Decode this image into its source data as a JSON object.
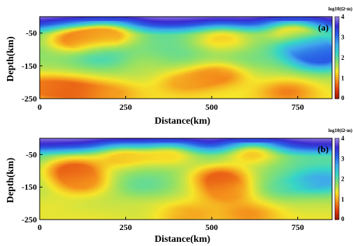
{
  "chart_data": [
    {
      "type": "heatmap",
      "panel_label": "(a)",
      "xlabel": "Distance(km)",
      "ylabel": "Depth(km)",
      "xlim": [
        0,
        850
      ],
      "ylim": [
        -250,
        0
      ],
      "x_ticks": [
        "0",
        "250",
        "500",
        "750"
      ],
      "x_tick_values": [
        0,
        250,
        500,
        750
      ],
      "y_ticks": [
        "-50",
        "-150",
        "-250"
      ],
      "y_tick_values": [
        -50,
        -150,
        -250
      ],
      "colorbar": {
        "title": "log10(Ω·m)",
        "ticks": [
          "4",
          "3",
          "2",
          "1",
          "0"
        ],
        "range": [
          0,
          4
        ],
        "colors": [
          "#9a1400",
          "#e03a10",
          "#f4901c",
          "#f6e52a",
          "#8ce06a",
          "#36d6c6",
          "#40a8ec",
          "#2860e6",
          "#3a2ad0",
          "#a48ae6"
        ]
      },
      "features": [
        {
          "x": 100,
          "depth": -225,
          "value": 0.6
        },
        {
          "x": 0,
          "depth": -215,
          "value": 0.8
        },
        {
          "x": 215,
          "depth": -235,
          "value": 1.0
        },
        {
          "x": 520,
          "depth": -180,
          "value": 0.8
        },
        {
          "x": 420,
          "depth": -205,
          "value": 1.0
        },
        {
          "x": 720,
          "depth": -230,
          "value": 0.8
        },
        {
          "x": 100,
          "depth": -70,
          "value": 0.8
        },
        {
          "x": 200,
          "depth": -55,
          "value": 1.0
        },
        {
          "x": 530,
          "depth": -70,
          "value": 1.2
        },
        {
          "x": 735,
          "depth": -50,
          "value": 1.2
        },
        {
          "x": 180,
          "depth": -120,
          "value": 2.2
        },
        {
          "x": 820,
          "depth": -125,
          "value": 3.2
        },
        {
          "x": 780,
          "depth": -90,
          "value": 2.9
        },
        {
          "x": 390,
          "depth": -110,
          "value": 2.0
        },
        {
          "x": 600,
          "depth": -125,
          "value": 1.9
        },
        {
          "x": 310,
          "depth": -150,
          "value": 1.6
        }
      ]
    },
    {
      "type": "heatmap",
      "panel_label": "(b)",
      "xlabel": "Distance(km)",
      "ylabel": "Depth(km)",
      "xlim": [
        0,
        850
      ],
      "ylim": [
        -250,
        0
      ],
      "x_ticks": [
        "0",
        "250",
        "500",
        "750"
      ],
      "x_tick_values": [
        0,
        250,
        500,
        750
      ],
      "y_ticks": [
        "-50",
        "-150",
        "-250"
      ],
      "y_tick_values": [
        -50,
        -150,
        -250
      ],
      "colorbar": {
        "title": "log10(Ω·m)",
        "ticks": [
          "4",
          "3",
          "2",
          "1",
          "0"
        ],
        "range": [
          0,
          4
        ],
        "colors": [
          "#9a1400",
          "#e03a10",
          "#f4901c",
          "#f6e52a",
          "#8ce06a",
          "#36d6c6",
          "#40a8ec",
          "#2860e6",
          "#3a2ad0",
          "#a48ae6"
        ]
      },
      "features": [
        {
          "x": 95,
          "depth": -95,
          "value": 0.6
        },
        {
          "x": 120,
          "depth": -140,
          "value": 0.9
        },
        {
          "x": 525,
          "depth": -120,
          "value": 0.6
        },
        {
          "x": 540,
          "depth": -170,
          "value": 0.9
        },
        {
          "x": 430,
          "depth": -235,
          "value": 1.0
        },
        {
          "x": 610,
          "depth": -235,
          "value": 0.9
        },
        {
          "x": 300,
          "depth": -220,
          "value": 1.5
        },
        {
          "x": 20,
          "depth": -220,
          "value": 1.4
        },
        {
          "x": 240,
          "depth": -60,
          "value": 1.2
        },
        {
          "x": 620,
          "depth": -50,
          "value": 1.2
        },
        {
          "x": 380,
          "depth": -55,
          "value": 1.3
        },
        {
          "x": 820,
          "depth": -130,
          "value": 2.7
        },
        {
          "x": 300,
          "depth": -140,
          "value": 2.0
        },
        {
          "x": 700,
          "depth": -150,
          "value": 2.0
        }
      ]
    }
  ]
}
